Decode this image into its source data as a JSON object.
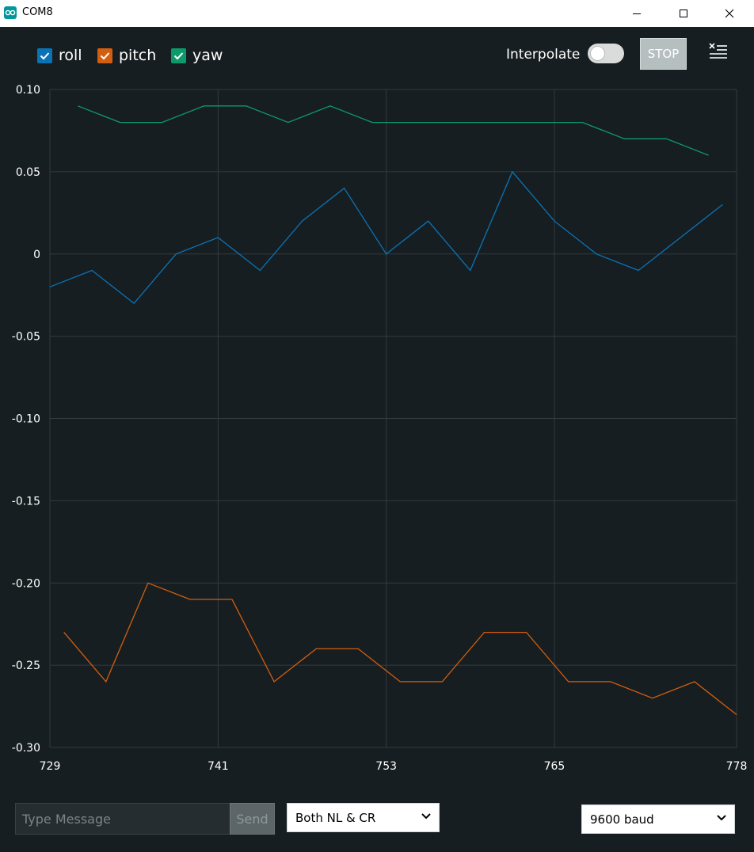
{
  "window": {
    "title": "COM8",
    "app_icon": "arduino-icon",
    "controls": [
      "minimize-icon",
      "maximize-icon",
      "close-icon"
    ]
  },
  "toolbar": {
    "series_toggles": [
      {
        "label": "roll",
        "checked": true,
        "color": "#0a73b6"
      },
      {
        "label": "pitch",
        "checked": true,
        "color": "#d35e0f"
      },
      {
        "label": "yaw",
        "checked": true,
        "color": "#0d9a6a"
      }
    ],
    "interpolate_label": "Interpolate",
    "interpolate_on": false,
    "stop_label": "STOP",
    "clear_icon": "clear-list-icon"
  },
  "chart_data": {
    "type": "line",
    "title": "",
    "xlabel": "",
    "ylabel": "",
    "xlim": [
      729,
      778
    ],
    "ylim": [
      -0.3,
      0.1
    ],
    "x_ticks": [
      "729",
      "741",
      "753",
      "765",
      "778"
    ],
    "y_ticks": [
      "0.10",
      "0.05",
      "0",
      "-0.05",
      "-0.10",
      "-0.15",
      "-0.20",
      "-0.25",
      "-0.30"
    ],
    "grid": true,
    "series": [
      {
        "name": "roll",
        "color": "#0a73b6",
        "x": [
          729,
          732,
          735,
          738,
          741,
          744,
          747,
          750,
          753,
          756,
          759,
          762,
          765,
          768,
          771,
          774,
          777
        ],
        "y": [
          -0.02,
          -0.01,
          -0.03,
          0.0,
          0.01,
          -0.01,
          0.02,
          0.04,
          0.0,
          0.02,
          -0.01,
          0.05,
          0.02,
          0.0,
          -0.01,
          0.01,
          0.03
        ]
      },
      {
        "name": "pitch",
        "color": "#d35e0f",
        "x": [
          730,
          733,
          736,
          739,
          742,
          745,
          748,
          751,
          754,
          757,
          760,
          763,
          766,
          769,
          772,
          775,
          778
        ],
        "y": [
          -0.23,
          -0.26,
          -0.2,
          -0.21,
          -0.21,
          -0.26,
          -0.24,
          -0.24,
          -0.26,
          -0.26,
          -0.23,
          -0.23,
          -0.26,
          -0.26,
          -0.27,
          -0.26,
          -0.28
        ]
      },
      {
        "name": "yaw",
        "color": "#0d9a6a",
        "x": [
          731,
          734,
          737,
          740,
          743,
          746,
          749,
          752,
          755,
          758,
          761,
          764,
          767,
          770,
          773,
          776
        ],
        "y": [
          0.09,
          0.08,
          0.08,
          0.09,
          0.09,
          0.08,
          0.09,
          0.08,
          0.08,
          0.08,
          0.08,
          0.08,
          0.08,
          0.07,
          0.07,
          0.06
        ]
      }
    ]
  },
  "footer": {
    "message_placeholder": "Type Message",
    "message_value": "",
    "send_label": "Send",
    "line_ending": "Both NL & CR",
    "baud_rate": "9600 baud"
  }
}
